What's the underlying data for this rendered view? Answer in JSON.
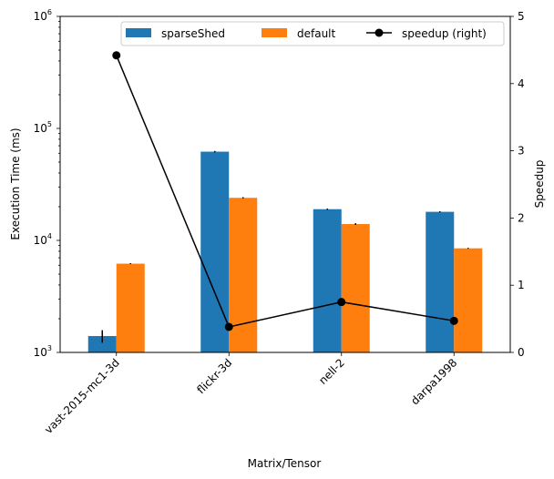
{
  "chart_data": {
    "type": "bar",
    "categories": [
      "vast-2015-mc1-3d",
      "flickr-3d",
      "nell-2",
      "darpa1998"
    ],
    "series": [
      {
        "name": "sparseShed",
        "values": [
          1400,
          62000,
          19000,
          18000
        ],
        "error": [
          180,
          900,
          250,
          200
        ],
        "color": "#1f77b4"
      },
      {
        "name": "default",
        "values": [
          6200,
          24000,
          14000,
          8500
        ],
        "error": [
          60,
          300,
          250,
          80
        ],
        "color": "#ff7f0e"
      }
    ],
    "line_series": {
      "name": "speedup (right)",
      "values": [
        4.42,
        0.38,
        0.75,
        0.47
      ],
      "color": "#000000"
    },
    "xlabel": "Matrix/Tensor",
    "ylabel": "Execution Time (ms)",
    "y2label": "Speedup",
    "yscale": "log",
    "ylim": [
      1000,
      1000000
    ],
    "y2lim": [
      0,
      5
    ],
    "yticks": [
      {
        "value": 1000,
        "base": "10",
        "exp": "3"
      },
      {
        "value": 10000,
        "base": "10",
        "exp": "4"
      },
      {
        "value": 100000,
        "base": "10",
        "exp": "5"
      },
      {
        "value": 1000000,
        "base": "10",
        "exp": "6"
      }
    ],
    "y2ticks": [
      "0",
      "1",
      "2",
      "3",
      "4",
      "5"
    ],
    "grid": false,
    "legend_placement": "top-right"
  }
}
